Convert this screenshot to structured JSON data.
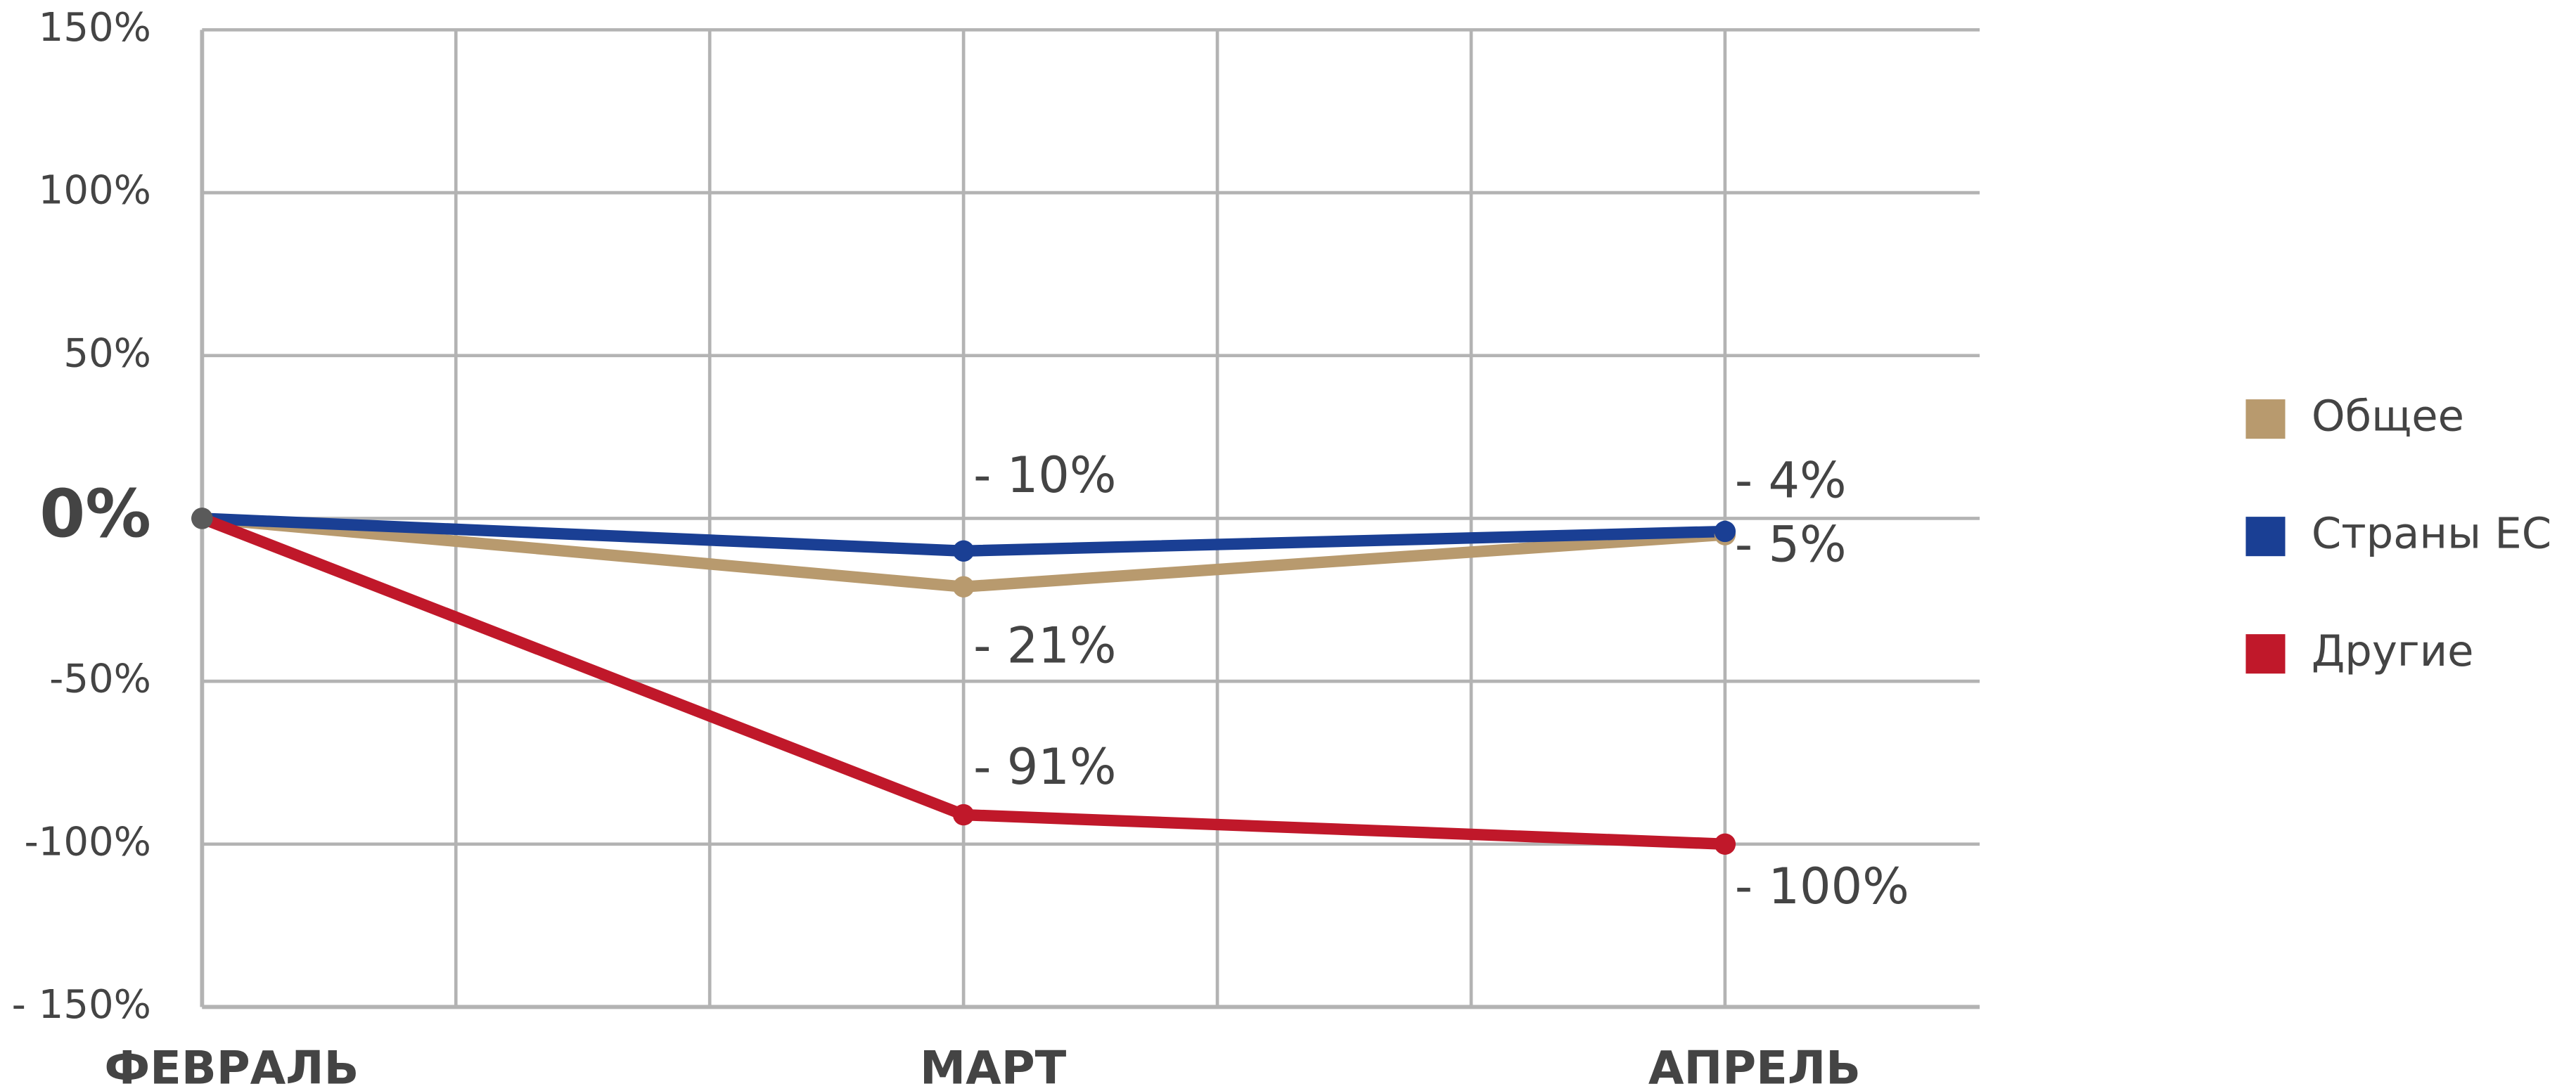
{
  "chart_data": {
    "type": "line",
    "categories": [
      "ФЕВРАЛЬ",
      "МАРТ",
      "АПРЕЛЬ"
    ],
    "series": [
      {
        "name": "Общее",
        "color": "#b89a6e",
        "values": [
          0,
          -21,
          -5
        ],
        "value_labels": [
          null,
          "- 21%",
          "- 5%"
        ]
      },
      {
        "name": "Страны ЕС",
        "color": "#1a3f94",
        "values": [
          0,
          -10,
          -4
        ],
        "value_labels": [
          null,
          "- 10%",
          "- 4%"
        ]
      },
      {
        "name": "Другие",
        "color": "#c0182a",
        "values": [
          0,
          -91,
          -100
        ],
        "value_labels": [
          null,
          "- 91%",
          "- 100%"
        ]
      }
    ],
    "ylim": [
      -150,
      150
    ],
    "yticks": [
      {
        "value": 150,
        "label": "150%"
      },
      {
        "value": 100,
        "label": "100%"
      },
      {
        "value": 50,
        "label": "50%"
      },
      {
        "value": 0,
        "label": "0%"
      },
      {
        "value": -50,
        "label": "-50%"
      },
      {
        "value": -100,
        "label": "-100%"
      },
      {
        "value": -150,
        "label": "- 150%"
      }
    ],
    "grid": true,
    "legend": "right"
  }
}
